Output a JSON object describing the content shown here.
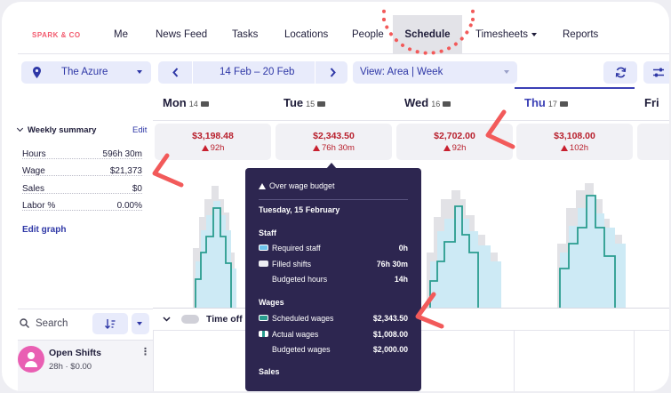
{
  "nav": {
    "brand": "SPARK & CO",
    "items": [
      "Me",
      "News Feed",
      "Tasks",
      "Locations",
      "People",
      "Schedule",
      "Timesheets",
      "Reports"
    ],
    "active": "Schedule"
  },
  "toolbar": {
    "location": "The Azure",
    "date_range": "14 Feb – 20 Feb",
    "view": "View: Area |  Week"
  },
  "days": [
    {
      "name": "Mon",
      "num": "14",
      "wage": "$3,198.48",
      "hours": "92h"
    },
    {
      "name": "Tue",
      "num": "15",
      "wage": "$2,343.50",
      "hours": "76h 30m"
    },
    {
      "name": "Wed",
      "num": "16",
      "wage": "$2,702.00",
      "hours": "92h"
    },
    {
      "name": "Thu",
      "num": "17",
      "wage": "$3,108.00",
      "hours": "102h"
    },
    {
      "name": "Fri",
      "num": "",
      "wage": "",
      "hours": ""
    }
  ],
  "summary": {
    "title": "Weekly summary",
    "edit": "Edit",
    "rows": [
      {
        "label": "Hours",
        "value": "596h 30m"
      },
      {
        "label": "Wage",
        "value": "$21,373"
      },
      {
        "label": "Sales",
        "value": "$0"
      },
      {
        "label": "Labor %",
        "value": "0.00%"
      }
    ],
    "edit_graph": "Edit graph"
  },
  "search": {
    "label": "Search"
  },
  "open_shifts": {
    "name": "Open Shifts",
    "sub": "28h · $0.00"
  },
  "timeoff": {
    "label": "Time off"
  },
  "tooltip": {
    "title": "Over wage budget",
    "date": "Tuesday, 15 February",
    "staff_title": "Staff",
    "required_label": "Required staff",
    "required_value": "0h",
    "filled_label": "Filled shifts",
    "filled_value": "76h 30m",
    "budgeted_hours_label": "Budgeted hours",
    "budgeted_hours_value": "14h",
    "wages_title": "Wages",
    "scheduled_label": "Scheduled wages",
    "scheduled_value": "$2,343.50",
    "actual_label": "Actual wages",
    "actual_value": "$1,008.00",
    "budgeted_wages_label": "Budgeted wages",
    "budgeted_wages_value": "$2,000.00",
    "sales_title": "Sales"
  },
  "colors": {
    "accent": "#2e37a6",
    "alert": "#b81f2c",
    "annotation": "#f25a5a",
    "fill": "#cdeaf5",
    "line": "#2a9d8f",
    "budget": "#e2e2e6",
    "tooltip_bg": "#2d2650"
  }
}
